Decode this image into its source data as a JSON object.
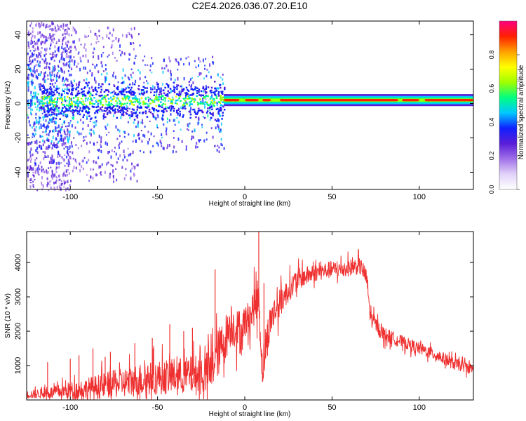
{
  "title": "C2E4.2026.036.07.20.E10",
  "chart_data": [
    {
      "type": "heatmap",
      "name": "spectrogram",
      "xlabel": "Height of straight line (km)",
      "ylabel": "Frequency (Hz)",
      "xlim": [
        -125,
        131
      ],
      "ylim": [
        -50,
        48
      ],
      "xticks": [
        -100,
        -50,
        0,
        50,
        100
      ],
      "yticks": [
        -40,
        -20,
        0,
        20,
        40
      ],
      "colorbar": {
        "label": "Normalized spectral amplitude",
        "range": [
          0.0,
          1.0
        ],
        "ticks": [
          0.0,
          0.2,
          0.4,
          0.6,
          0.8
        ],
        "colors": [
          "#ffffff",
          "#e2d2f8",
          "#a070e8",
          "#5a1ed8",
          "#1020ff",
          "#00c8ff",
          "#00ff80",
          "#a0ff00",
          "#ffff00",
          "#ffa000",
          "#ff2000",
          "#ff0080"
        ]
      },
      "signal_band": {
        "center_freq_hz": 2,
        "onset_height_km": -12,
        "strong_segments_km": [
          [
            -12,
            -3
          ],
          [
            0,
            8
          ],
          [
            10,
            15
          ],
          [
            20,
            88
          ],
          [
            90,
            100
          ],
          [
            103,
            131
          ]
        ]
      },
      "noise_scatter_segments_km": [
        [
          -125,
          -100
        ],
        [
          -100,
          -60
        ],
        [
          -60,
          -12
        ]
      ]
    },
    {
      "type": "line",
      "name": "snr",
      "xlabel": "Height of straight line (km)",
      "ylabel": "SNR (10 * v/v)",
      "xlim": [
        -125,
        131
      ],
      "ylim": [
        0,
        4900
      ],
      "xticks": [
        -100,
        -50,
        0,
        50,
        100
      ],
      "yticks": [
        1000,
        2000,
        3000,
        4000
      ],
      "color": "#ef3030",
      "envelope": {
        "x": [
          -125,
          -110,
          -100,
          -90,
          -80,
          -70,
          -60,
          -50,
          -40,
          -30,
          -25,
          -20,
          -17,
          -15,
          -12,
          -8,
          -5,
          -2,
          0,
          3,
          5,
          8,
          10,
          12,
          15,
          20,
          25,
          30,
          35,
          40,
          45,
          50,
          55,
          60,
          65,
          67,
          70,
          72,
          75,
          80,
          90,
          100,
          110,
          120,
          131
        ],
        "base": [
          150,
          220,
          280,
          330,
          420,
          500,
          580,
          650,
          700,
          720,
          740,
          800,
          1200,
          1400,
          1700,
          2200,
          2100,
          1900,
          2300,
          2400,
          2700,
          3000,
          900,
          1500,
          2400,
          2800,
          3200,
          3500,
          3600,
          3700,
          3750,
          3800,
          3800,
          3850,
          3900,
          3850,
          3500,
          2400,
          2200,
          1900,
          1700,
          1500,
          1300,
          1050,
          900
        ],
        "noise": [
          150,
          250,
          350,
          450,
          550,
          600,
          700,
          700,
          750,
          800,
          900,
          900,
          1000,
          1000,
          1000,
          900,
          900,
          900,
          700,
          700,
          800,
          900,
          800,
          800,
          700,
          600,
          500,
          450,
          400,
          350,
          350,
          350,
          350,
          350,
          350,
          350,
          400,
          350,
          300,
          300,
          250,
          250,
          250,
          250,
          200
        ]
      },
      "spikes": [
        {
          "x": -113,
          "y": 1100
        },
        {
          "x": -100,
          "y": 1200
        },
        {
          "x": -95,
          "y": 1300
        },
        {
          "x": -87,
          "y": 1500
        },
        {
          "x": -80,
          "y": 1250
        },
        {
          "x": -77,
          "y": 1400
        },
        {
          "x": -63,
          "y": 1650
        },
        {
          "x": -53,
          "y": 1800
        },
        {
          "x": -43,
          "y": 2200
        },
        {
          "x": -35,
          "y": 2000
        },
        {
          "x": -30,
          "y": 2100
        },
        {
          "x": -17,
          "y": 3800
        },
        {
          "x": 8,
          "y": 4900
        },
        {
          "x": 11,
          "y": 3400
        }
      ]
    }
  ]
}
